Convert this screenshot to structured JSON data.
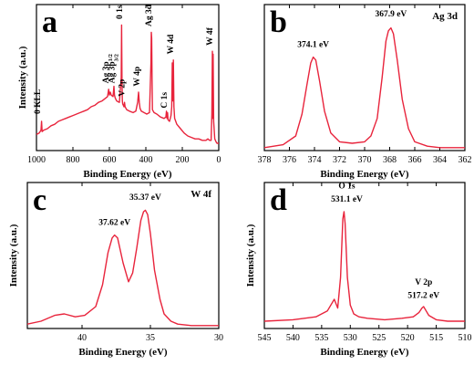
{
  "figure": {
    "line_color": "#e8243c",
    "axis_color": "#000000",
    "background": "#ffffff"
  },
  "chart_data": [
    {
      "id": "a",
      "type": "line",
      "panel_label": "a",
      "title": "",
      "xlabel": "Binding Energy (eV)",
      "ylabel": "Intensity (a.u.)",
      "xlim": [
        1000,
        0
      ],
      "x_reversed": true,
      "ylim": [
        0,
        1
      ],
      "y_ticks_shown": false,
      "xticks": [
        1000,
        800,
        600,
        400,
        200,
        0
      ],
      "series": [
        {
          "x": [
            1000,
            985,
            975,
            972,
            969,
            960,
            940,
            920,
            900,
            880,
            860,
            840,
            820,
            800,
            780,
            760,
            740,
            720,
            700,
            680,
            660,
            640,
            620,
            610,
            604,
            600,
            595,
            590,
            580,
            575,
            572,
            568,
            560,
            545,
            535,
            533,
            531,
            529,
            527,
            520,
            517,
            514,
            505,
            490,
            470,
            455,
            445,
            440,
            436,
            432,
            425,
            410,
            395,
            380,
            372,
            370,
            368,
            366,
            364,
            355,
            340,
            320,
            300,
            290,
            287,
            284,
            281,
            278,
            270,
            262,
            258,
            255,
            252,
            249,
            246,
            242,
            230,
            210,
            190,
            170,
            150,
            130,
            110,
            90,
            70,
            60,
            50,
            42,
            38,
            35,
            33,
            31,
            28,
            22,
            15,
            10,
            5,
            0
          ],
          "y": [
            0.11,
            0.12,
            0.14,
            0.2,
            0.13,
            0.14,
            0.15,
            0.17,
            0.18,
            0.2,
            0.21,
            0.22,
            0.23,
            0.24,
            0.25,
            0.26,
            0.27,
            0.28,
            0.3,
            0.31,
            0.33,
            0.34,
            0.36,
            0.37,
            0.42,
            0.38,
            0.4,
            0.38,
            0.37,
            0.44,
            0.38,
            0.36,
            0.34,
            0.33,
            0.5,
            0.86,
            0.5,
            0.34,
            0.32,
            0.3,
            0.33,
            0.3,
            0.28,
            0.27,
            0.26,
            0.27,
            0.33,
            0.4,
            0.33,
            0.29,
            0.27,
            0.26,
            0.25,
            0.26,
            0.6,
            0.81,
            0.77,
            0.5,
            0.28,
            0.26,
            0.25,
            0.23,
            0.22,
            0.23,
            0.27,
            0.22,
            0.26,
            0.21,
            0.2,
            0.24,
            0.3,
            0.6,
            0.34,
            0.62,
            0.3,
            0.22,
            0.18,
            0.15,
            0.12,
            0.1,
            0.09,
            0.08,
            0.08,
            0.07,
            0.07,
            0.08,
            0.07,
            0.07,
            0.25,
            0.68,
            0.22,
            0.66,
            0.2,
            0.08,
            0.06,
            0.05,
            0.05,
            0.05
          ]
        }
      ],
      "annotations": [
        {
          "text": "0 KLL",
          "x": 980,
          "y": 0.25,
          "rotate": true
        },
        {
          "text": "Ag 3p",
          "sub": "1/2",
          "x": 604,
          "y": 0.46,
          "rotate": true
        },
        {
          "text": "Ag 3p",
          "sub": "3/2",
          "x": 573,
          "y": 0.46,
          "rotate": true
        },
        {
          "text": "0 1s",
          "x": 531,
          "y": 0.9,
          "rotate": true
        },
        {
          "text": "V 2p",
          "x": 517,
          "y": 0.37,
          "rotate": true
        },
        {
          "text": "W 4p",
          "x": 436,
          "y": 0.44,
          "rotate": true
        },
        {
          "text": "Ag 3d",
          "x": 369,
          "y": 0.85,
          "rotate": true
        },
        {
          "text": "C 1s",
          "x": 285,
          "y": 0.29,
          "rotate": true
        },
        {
          "text": "W 4d",
          "x": 251,
          "y": 0.66,
          "rotate": true
        },
        {
          "text": "W 4f",
          "x": 34,
          "y": 0.72,
          "rotate": true
        }
      ]
    },
    {
      "id": "b",
      "type": "line",
      "panel_label": "b",
      "species_label": "Ag 3d",
      "title": "",
      "xlabel": "Binding Energy (eV)",
      "ylabel": "",
      "xlim": [
        378,
        362
      ],
      "x_reversed": true,
      "ylim": [
        0,
        1
      ],
      "y_ticks_shown": false,
      "xticks": [
        378,
        376,
        374,
        372,
        370,
        368,
        366,
        364,
        362
      ],
      "series": [
        {
          "x": [
            378,
            376.5,
            375.5,
            375,
            374.6,
            374.3,
            374.1,
            373.9,
            373.6,
            373.2,
            372.7,
            372,
            371,
            370,
            369.5,
            369,
            368.6,
            368.3,
            368.1,
            367.9,
            367.7,
            367.4,
            367,
            366.5,
            366,
            365,
            364,
            362
          ],
          "y": [
            0.02,
            0.04,
            0.1,
            0.25,
            0.45,
            0.6,
            0.64,
            0.62,
            0.48,
            0.27,
            0.12,
            0.06,
            0.05,
            0.06,
            0.1,
            0.22,
            0.5,
            0.75,
            0.82,
            0.84,
            0.8,
            0.62,
            0.35,
            0.15,
            0.06,
            0.03,
            0.02,
            0.02
          ]
        }
      ],
      "annotations": [
        {
          "text": "374.1 eV",
          "x": 374.1,
          "y": 0.71
        },
        {
          "text": "367.9 eV",
          "x": 367.9,
          "y": 0.92
        }
      ]
    },
    {
      "id": "c",
      "type": "line",
      "panel_label": "c",
      "species_label": "W 4f",
      "title": "",
      "xlabel": "Binding Energy (eV)",
      "ylabel": "Intensity (a.u.)",
      "xlim": [
        44,
        30
      ],
      "x_reversed": true,
      "ylim": [
        0,
        1
      ],
      "y_ticks_shown": false,
      "xticks": [
        40,
        35,
        30
      ],
      "series": [
        {
          "x": [
            44,
            43,
            42,
            41.3,
            40.5,
            39.8,
            39,
            38.5,
            38.1,
            37.8,
            37.62,
            37.4,
            37,
            36.6,
            36.3,
            36,
            35.7,
            35.5,
            35.37,
            35.2,
            35,
            34.7,
            34.3,
            34,
            33.5,
            33,
            32,
            30
          ],
          "y": [
            0.03,
            0.05,
            0.09,
            0.1,
            0.08,
            0.09,
            0.15,
            0.3,
            0.52,
            0.62,
            0.64,
            0.62,
            0.45,
            0.32,
            0.38,
            0.55,
            0.74,
            0.8,
            0.81,
            0.78,
            0.65,
            0.4,
            0.2,
            0.1,
            0.05,
            0.03,
            0.02,
            0.02
          ]
        }
      ],
      "annotations": [
        {
          "text": "37.62 eV",
          "x": 37.62,
          "y": 0.71
        },
        {
          "text": "35.37 eV",
          "x": 35.37,
          "y": 0.88
        }
      ]
    },
    {
      "id": "d",
      "type": "line",
      "panel_label": "d",
      "title": "",
      "xlabel": "Binding Energy (eV)",
      "ylabel": "Intensity (a.u.)",
      "xlim": [
        545,
        510
      ],
      "x_reversed": true,
      "ylim": [
        0,
        1
      ],
      "y_ticks_shown": false,
      "xticks": [
        545,
        540,
        535,
        530,
        525,
        520,
        515,
        510
      ],
      "series": [
        {
          "x": [
            545,
            540,
            536,
            534,
            532.8,
            532.2,
            531.7,
            531.3,
            531.1,
            530.9,
            530.5,
            530,
            529.4,
            528.5,
            527,
            524,
            521,
            519,
            518,
            517.5,
            517.2,
            516.9,
            516.3,
            515,
            513,
            510
          ],
          "y": [
            0.05,
            0.06,
            0.08,
            0.12,
            0.2,
            0.14,
            0.35,
            0.75,
            0.8,
            0.72,
            0.35,
            0.16,
            0.1,
            0.08,
            0.07,
            0.06,
            0.07,
            0.08,
            0.11,
            0.14,
            0.15,
            0.13,
            0.09,
            0.06,
            0.05,
            0.05
          ]
        }
      ],
      "annotations": [
        {
          "text": "O 1s",
          "x": 530.6,
          "y": 0.96
        },
        {
          "text": "531.1 eV",
          "x": 530.6,
          "y": 0.87
        },
        {
          "text": "V 2p",
          "x": 517.2,
          "y": 0.3
        },
        {
          "text": "517.2 eV",
          "x": 517.2,
          "y": 0.21
        }
      ]
    }
  ]
}
